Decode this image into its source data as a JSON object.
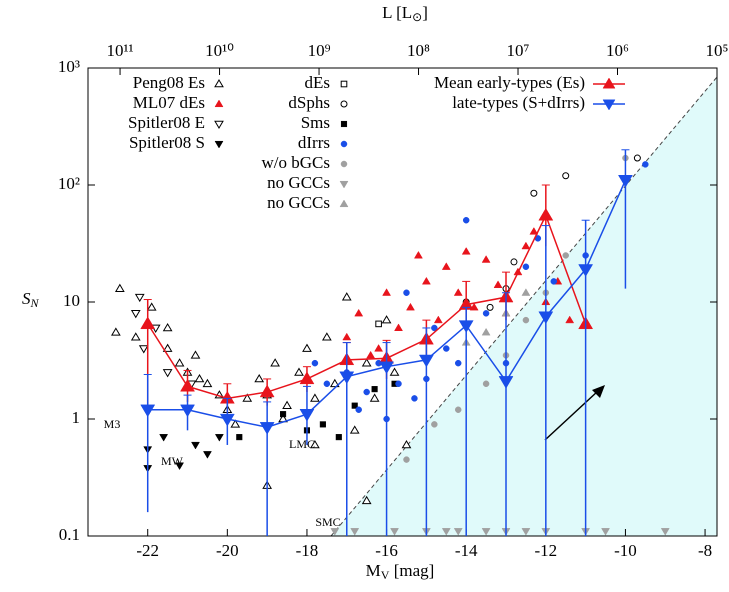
{
  "chart_data": {
    "type": "scatter",
    "x_label": {
      "main": "M",
      "sub": "V",
      "rest": " [mag]"
    },
    "y_label": {
      "main": "S",
      "sub": "N"
    },
    "x2_label": {
      "main": "L [L",
      "sub": "⊙",
      "rest": "]"
    },
    "xlim": [
      -23.5,
      -7.7
    ],
    "xticks": [
      -22,
      -20,
      -18,
      -16,
      -14,
      -12,
      -10,
      -8
    ],
    "ylim": [
      0.1,
      1000
    ],
    "y_log": true,
    "yticks": [
      0.1,
      1,
      10,
      {
        "value": 100,
        "label": "10²"
      },
      {
        "value": 1000,
        "label": "10³"
      }
    ],
    "x2lim": [
      210000000000,
      100000
    ],
    "x2_log": true,
    "x2ticks": [
      {
        "value": 100000000000,
        "label": "10¹¹"
      },
      {
        "value": 10000000000,
        "label": "10¹⁰"
      },
      {
        "value": 1000000000,
        "label": "10⁹"
      },
      {
        "value": 100000000,
        "label": "10⁸"
      },
      {
        "value": 10000000,
        "label": "10⁷"
      },
      {
        "value": 1000000,
        "label": "10⁶"
      },
      {
        "value": 100000,
        "label": "10⁵"
      }
    ],
    "annotations": [
      "M3",
      "MW",
      "LMC",
      "SMC"
    ],
    "series": [
      {
        "name": "Peng08 Es",
        "color": "#000000",
        "marker": "triangle-open",
        "x": [
          -22.7,
          -22.8,
          -22.3,
          -21.9,
          -21.5,
          -21.2,
          -21,
          -20.7,
          -20.5,
          -20.2,
          -20,
          -19.8,
          -19.5,
          -19.2,
          -19,
          -18.8,
          -18.5,
          -18.2,
          -18,
          -17.8,
          -17.5,
          -17.3,
          -17,
          -16.8,
          -16.5,
          -16.3,
          -16,
          -15.8,
          -15.5,
          -19,
          -16.5,
          -21.5,
          -20.8,
          -18.6,
          -17.8
        ],
        "values": [
          13,
          5.5,
          5,
          9,
          4,
          3,
          2.5,
          2.2,
          2,
          1.6,
          1.2,
          0.9,
          1.5,
          2.2,
          1.6,
          3,
          1.3,
          2.5,
          4,
          1.5,
          5,
          2,
          11,
          0.8,
          3,
          1.5,
          7,
          2.5,
          0.6,
          0.27,
          0.2,
          6,
          3.5,
          1,
          0.6
        ]
      },
      {
        "name": "ML07 dEs",
        "color": "#e8141c",
        "marker": "triangle",
        "x": [
          -17,
          -16.7,
          -16.4,
          -16,
          -15.7,
          -15.4,
          -15,
          -14.7,
          -14.5,
          -14.2,
          -14,
          -13.8,
          -13.5,
          -13.2,
          -13,
          -12.7,
          -12.5,
          -12.3,
          -12,
          -11.7,
          -11.4,
          -15.2,
          -16.2
        ],
        "values": [
          5,
          8,
          3.5,
          12,
          6,
          9,
          15,
          7,
          20,
          12,
          27,
          9,
          23,
          14,
          8,
          18,
          30,
          40,
          10,
          15,
          7,
          25,
          4
        ]
      },
      {
        "name": "Spitler08 E",
        "color": "#000000",
        "marker": "tri-down-open",
        "x": [
          -22.3,
          -22.2,
          -21.8,
          -21.5,
          -20.9,
          -22.1
        ],
        "values": [
          8,
          11,
          6,
          2.5,
          2,
          4
        ]
      },
      {
        "name": "Spitler08 S",
        "color": "#000000",
        "marker": "tri-down",
        "x": [
          -22,
          -21.2,
          -20.8,
          -20.2,
          -21.6,
          -20.5,
          -22
        ],
        "values": [
          0.55,
          0.4,
          0.6,
          0.7,
          0.7,
          0.5,
          0.38
        ]
      },
      {
        "name": "dEs",
        "color": "#000000",
        "marker": "square-open",
        "x": [
          -16.2
        ],
        "values": [
          6.5
        ]
      },
      {
        "name": "dSphs",
        "color": "#000000",
        "marker": "circle-open",
        "x": [
          -14,
          -13,
          -12.3,
          -11.5,
          -12.8,
          -13.4,
          -9.7
        ],
        "values": [
          10,
          13,
          85,
          120,
          22,
          9,
          170
        ]
      },
      {
        "name": "Sms",
        "color": "#000000",
        "marker": "square",
        "x": [
          -18,
          -17.6,
          -17.2,
          -16.8,
          -16.3,
          -15.8,
          -18.6,
          -19.7
        ],
        "values": [
          0.8,
          0.9,
          0.7,
          1.3,
          1.8,
          2,
          1.1,
          0.7
        ]
      },
      {
        "name": "dIrrs",
        "color": "#1a4ee8",
        "marker": "circle",
        "x": [
          -17.5,
          -17,
          -16.7,
          -16.2,
          -16,
          -15.7,
          -15.3,
          -15,
          -14.8,
          -14.5,
          -14.2,
          -14,
          -13.5,
          -13,
          -12.5,
          -12.2,
          -11.8,
          -11,
          -9.5,
          -15.5,
          -16.5,
          -17.8
        ],
        "values": [
          2,
          2.5,
          1.2,
          3,
          1,
          2,
          1.5,
          2.2,
          6,
          4,
          3,
          50,
          8,
          3,
          20,
          35,
          15,
          25,
          150,
          12,
          1.7,
          3
        ]
      },
      {
        "name": "w/o bGCs",
        "color": "#a0a0a0",
        "marker": "circle",
        "x": [
          -15.5,
          -14.2,
          -13.5,
          -13,
          -12.5,
          -12,
          -11.5,
          -10,
          -14.8
        ],
        "values": [
          0.45,
          1.2,
          2,
          3.5,
          7,
          12,
          25,
          170,
          0.9
        ]
      },
      {
        "name": "no GCCs",
        "color": "#a0a0a0",
        "marker": "tri-down",
        "x": [
          -17.3,
          -16.8,
          -15.8,
          -15,
          -14.5,
          -14.2,
          -13.5,
          -13,
          -12.5,
          -12,
          -11,
          -10.5,
          -9
        ],
        "values": [
          0.11,
          0.11,
          0.11,
          0.11,
          0.11,
          0.11,
          0.11,
          0.11,
          0.11,
          0.11,
          0.11,
          0.11,
          0.11
        ]
      },
      {
        "name": "no GCCs",
        "color": "#a0a0a0",
        "marker": "triangle",
        "x": [
          -14,
          -13.5,
          -13,
          -12.5
        ],
        "values": [
          4.5,
          5.5,
          8,
          12
        ]
      },
      {
        "name": "Mean early-types (Es)",
        "color": "#e8141c",
        "marker": "triangle",
        "line": true,
        "x": [
          -22,
          -21,
          -20,
          -19,
          -18,
          -17,
          -16,
          -15,
          -14,
          -13,
          -12,
          -11
        ],
        "values": [
          6.5,
          1.9,
          1.5,
          1.7,
          2.2,
          3.2,
          3.3,
          4.8,
          9.5,
          11,
          55,
          6.5
        ],
        "lower": [
          1.3,
          1.4,
          1.1,
          1.3,
          1.7,
          2.2,
          2.2,
          3.2,
          6,
          7,
          30,
          6.5
        ],
        "upper": [
          10.5,
          2.6,
          2,
          2.2,
          2.8,
          4.5,
          4.7,
          7,
          15,
          18,
          100,
          6.5
        ]
      },
      {
        "name": "late-types (S+dIrrs)",
        "color": "#1a4ee8",
        "marker": "tri-down",
        "line": true,
        "x": [
          -22,
          -21,
          -20,
          -19,
          -18,
          -17,
          -16,
          -15,
          -14,
          -13,
          -12,
          -11,
          -10
        ],
        "values": [
          1.2,
          1.2,
          1,
          0.85,
          1.1,
          2.3,
          2.8,
          3.2,
          6.3,
          2.1,
          7.5,
          19,
          110
        ],
        "lower": [
          0.16,
          0.8,
          0.6,
          0.1,
          0.6,
          0.1,
          0.1,
          0.1,
          0.1,
          0.1,
          0.1,
          0.1,
          13
        ],
        "upper": [
          2.4,
          1.6,
          1.5,
          1.4,
          1.9,
          4.5,
          4.5,
          6,
          9,
          12,
          45,
          50,
          200
        ]
      }
    ]
  }
}
